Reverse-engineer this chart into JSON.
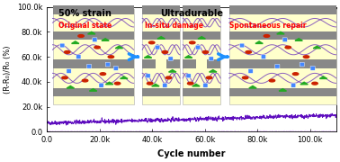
{
  "title_left": "50% strain",
  "title_center": "Ultradurable",
  "label_original": "Original state",
  "label_damage": "In-situ damage",
  "label_repair": "Spontaneous repair",
  "xlabel": "Cycle number",
  "ylabel": "(R-R₀)/R₀ (%)",
  "ylim": [
    0.0,
    100000
  ],
  "xlim": [
    0,
    110000
  ],
  "yticks": [
    0.0,
    20000,
    40000,
    60000,
    80000,
    100000
  ],
  "ytick_labels": [
    "0.0",
    "20.0k",
    "40.0k",
    "60.0k",
    "80.0k",
    "100.0k"
  ],
  "xticks": [
    0,
    20000,
    40000,
    60000,
    80000,
    100000
  ],
  "xtick_labels": [
    "0.0",
    "20.0k",
    "40.0k",
    "60.0k",
    "80.0k",
    "100.0k"
  ],
  "line1_color": "#5500bb",
  "line2_color": "#cc88ff",
  "n_points": 1100,
  "x_max": 110000,
  "arrow_color": "#1E90FF",
  "bg_color": "#ffffff",
  "image_bg": "#ffffdd",
  "bar_color": "#888888",
  "blue_color": "#4488ff",
  "red_color": "#cc2200",
  "green_color": "#22aa22",
  "purple_color": "#7744bb"
}
